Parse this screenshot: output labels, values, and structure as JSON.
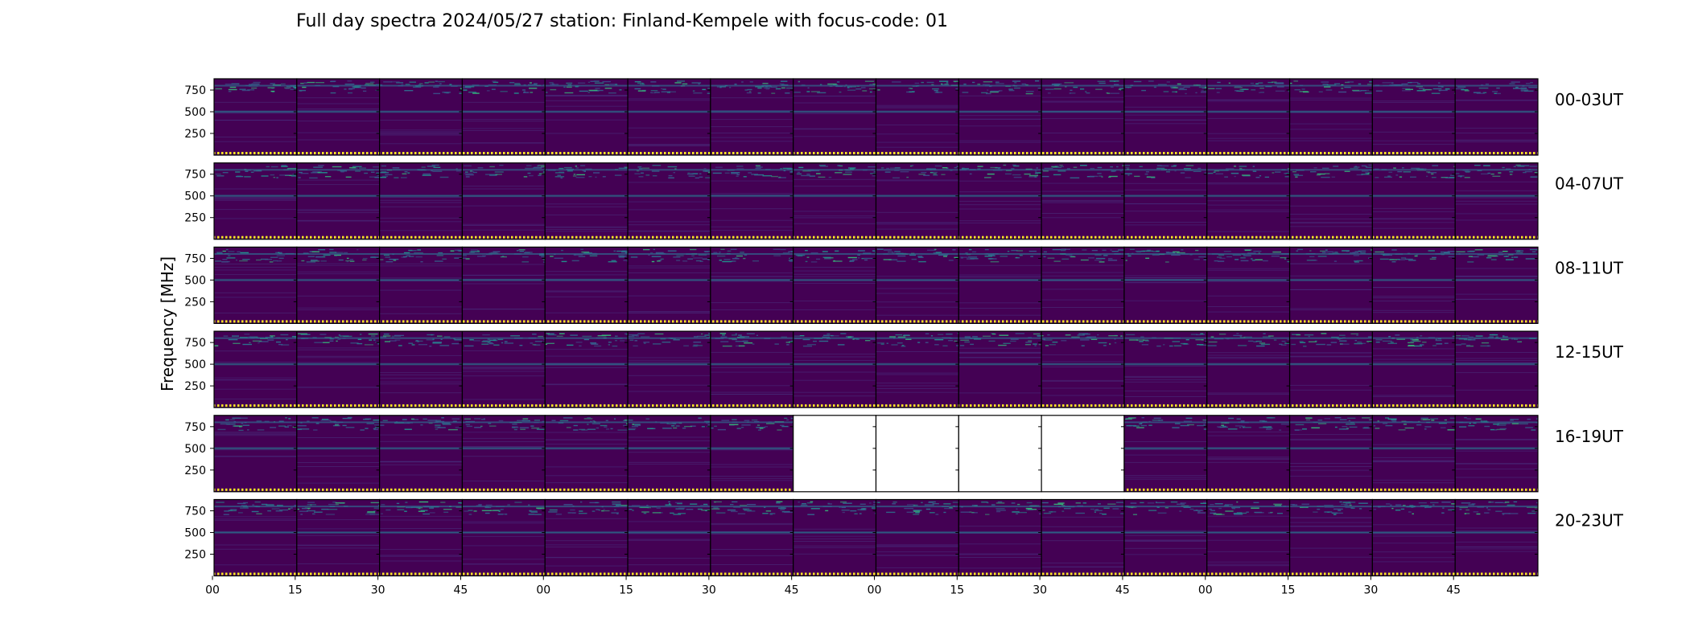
{
  "chart_data": {
    "type": "heatmap",
    "title": "Full day spectra 2024/05/27 station: Finland-Kempele with focus-code: 01",
    "ylabel": "Frequency [MHz]",
    "xlabel": "",
    "y_ticks": [
      750,
      500,
      250
    ],
    "x_ticks": [
      "00",
      "15",
      "30",
      "45",
      "00",
      "15",
      "30",
      "45",
      "00",
      "15",
      "30",
      "45",
      "00",
      "15",
      "30",
      "45"
    ],
    "colormap": "viridis",
    "background_color": "#440154",
    "missing_color": "#ffffff",
    "panels_per_row": 16,
    "panel_duration_minutes": 15,
    "rows": [
      {
        "label": "00-03UT",
        "missing_panels": []
      },
      {
        "label": "04-07UT",
        "missing_panels": []
      },
      {
        "label": "08-11UT",
        "missing_panels": []
      },
      {
        "label": "12-15UT",
        "missing_panels": []
      },
      {
        "label": "16-19UT",
        "missing_panels": [
          7,
          8,
          9,
          10
        ]
      },
      {
        "label": "20-23UT",
        "missing_panels": []
      }
    ]
  }
}
